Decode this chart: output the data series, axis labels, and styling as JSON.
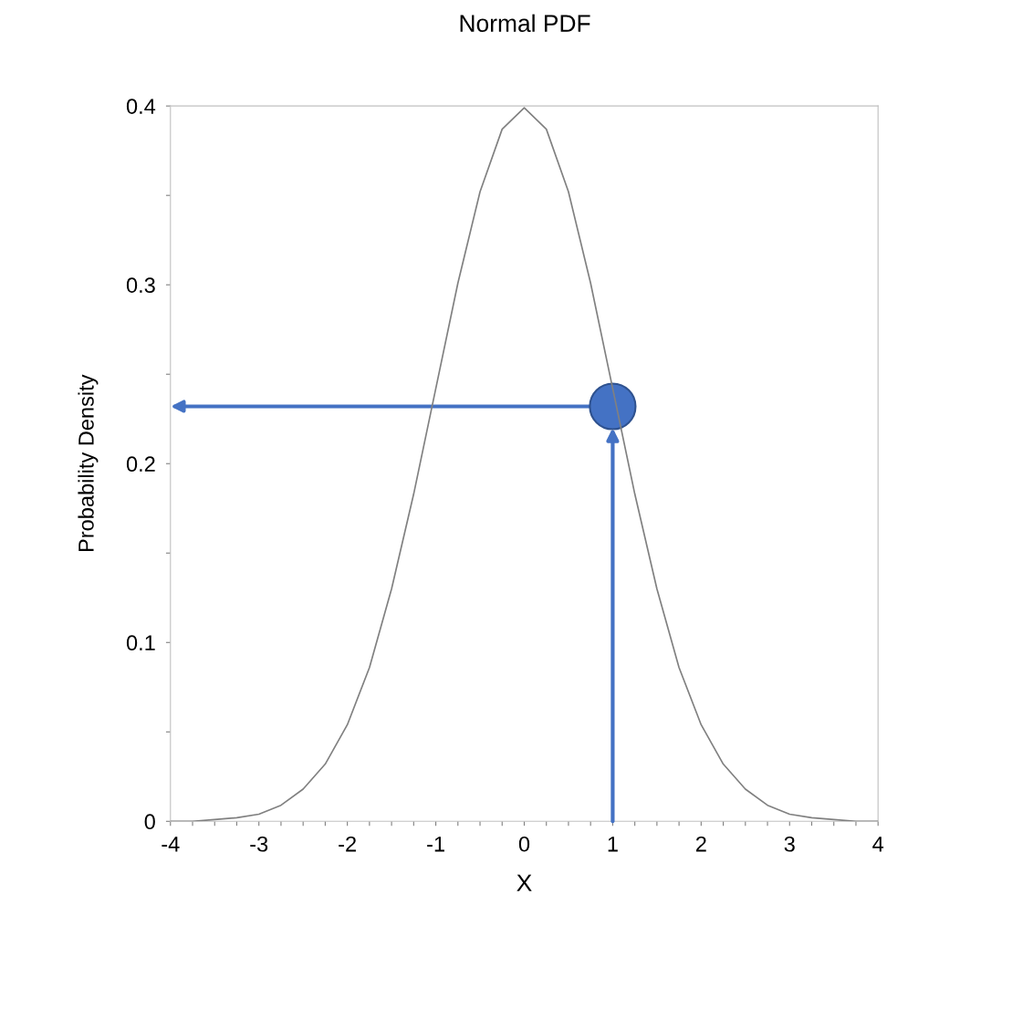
{
  "chart_data": {
    "type": "line",
    "title": "Normal PDF",
    "xlabel": "X",
    "ylabel": "Probability Density",
    "xlim": [
      -4,
      4
    ],
    "ylim": [
      0,
      0.4
    ],
    "xticks": [
      -4,
      {
        "value": -3.75,
        "label": null
      },
      {
        "value": -3.5,
        "label": null
      },
      {
        "value": -3.25,
        "label": null
      },
      -3,
      {
        "value": -2.75,
        "label": null
      },
      {
        "value": -2.5,
        "label": null
      },
      {
        "value": -2.25,
        "label": null
      },
      -2,
      {
        "value": -1.75,
        "label": null
      },
      {
        "value": -1.5,
        "label": null
      },
      {
        "value": -1.25,
        "label": null
      },
      -1,
      {
        "value": -0.75,
        "label": null
      },
      {
        "value": -0.5,
        "label": null
      },
      {
        "value": -0.25,
        "label": null
      },
      0,
      {
        "value": 0.25,
        "label": null
      },
      {
        "value": 0.5,
        "label": null
      },
      {
        "value": 0.75,
        "label": null
      },
      1,
      {
        "value": 1.25,
        "label": null
      },
      {
        "value": 1.5,
        "label": null
      },
      {
        "value": 1.75,
        "label": null
      },
      2,
      {
        "value": 2.25,
        "label": null
      },
      {
        "value": 2.5,
        "label": null
      },
      {
        "value": 2.75,
        "label": null
      },
      3,
      {
        "value": 3.25,
        "label": null
      },
      {
        "value": 3.5,
        "label": null
      },
      {
        "value": 3.75,
        "label": null
      },
      4
    ],
    "yticks": [
      0,
      {
        "value": 0.05,
        "label": null
      },
      0.1,
      {
        "value": 0.15,
        "label": null
      },
      0.2,
      {
        "value": 0.25,
        "label": null
      },
      0.3,
      {
        "value": 0.35,
        "label": null
      },
      0.4
    ],
    "grid": false,
    "legend": false,
    "series": [
      {
        "color": "#808080",
        "x": [
          -4,
          -3.75,
          -3.5,
          -3.25,
          -3,
          -2.75,
          -2.5,
          -2.25,
          -2,
          -1.75,
          -1.5,
          -1.25,
          -1,
          -0.75,
          -0.5,
          -0.25,
          0,
          0.25,
          0.5,
          0.75,
          1,
          1.25,
          1.5,
          1.75,
          2,
          2.25,
          2.5,
          2.75,
          3,
          3.25,
          3.5,
          3.75,
          4
        ],
        "values": [
          0.0,
          0.0,
          0.001,
          0.002,
          0.004,
          0.009,
          0.018,
          0.032,
          0.054,
          0.086,
          0.13,
          0.183,
          0.242,
          0.301,
          0.352,
          0.387,
          0.399,
          0.387,
          0.352,
          0.301,
          0.242,
          0.183,
          0.13,
          0.086,
          0.054,
          0.032,
          0.018,
          0.009,
          0.004,
          0.002,
          0.001,
          0.0,
          0.0
        ]
      },
      {
        "type": "scatter",
        "color": "#4472c4",
        "x": [
          1
        ],
        "values": [
          0.232
        ],
        "marker": "circle"
      }
    ]
  }
}
